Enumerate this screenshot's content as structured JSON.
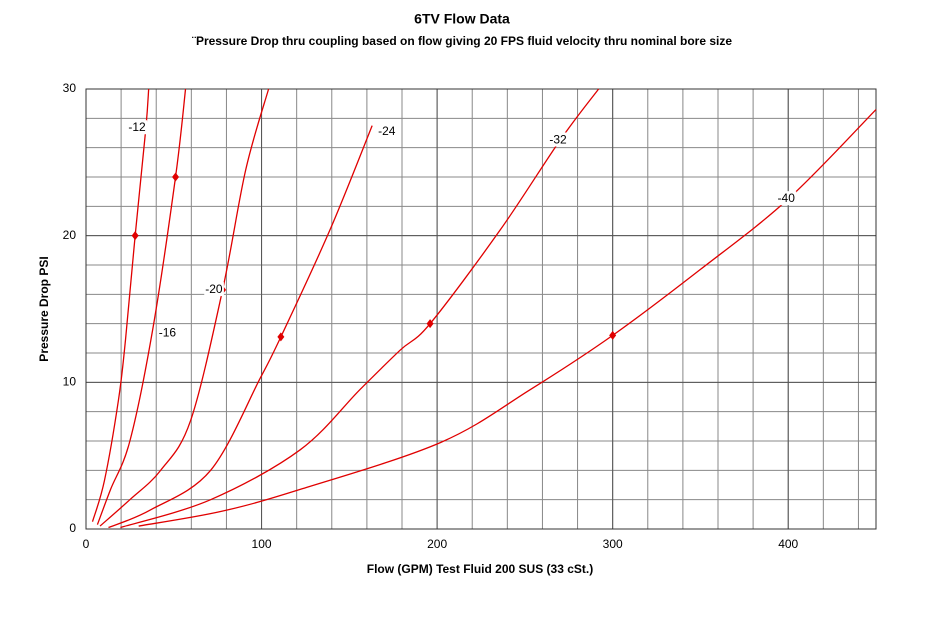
{
  "chart_data": {
    "type": "line",
    "title": "6TV Flow Data",
    "subtitle": "¨Pressure Drop thru coupling based on flow giving 20 FPS fluid velocity thru nominal bore size",
    "x_label": "Flow (GPM) Test Fluid 200 SUS (33 cSt.)",
    "y_label": "Pressure Drop PSI",
    "xlim": [
      0,
      450
    ],
    "ylim": [
      0,
      30
    ],
    "xticks": [
      0,
      100,
      200,
      300,
      400
    ],
    "yticks": [
      0,
      10,
      20,
      30
    ],
    "grid": true,
    "minor_grid": {
      "x": 20,
      "y": 2
    },
    "series": [
      {
        "name": "-12",
        "color": "#e00000",
        "x": [
          3.7,
          10.5,
          18.5,
          22.5,
          28,
          34,
          35.7
        ],
        "values": [
          0.5,
          3.3,
          8.8,
          12.9,
          20,
          27.2,
          30
        ],
        "marker": {
          "x": 28,
          "y": 20
        }
      },
      {
        "name": "-16",
        "color": "#e00000",
        "x": [
          6.5,
          14,
          25,
          38,
          51,
          56.7
        ],
        "values": [
          0.3,
          2.7,
          6,
          13.6,
          24,
          30
        ],
        "marker": {
          "x": 51,
          "y": 24
        }
      },
      {
        "name": "-20",
        "color": "#e00000",
        "x": [
          8,
          25,
          42.5,
          59.6,
          77.8,
          91,
          104
        ],
        "values": [
          0.2,
          2,
          4,
          7.4,
          16.3,
          24.5,
          30
        ],
        "marker": {
          "x": 77.8,
          "y": 16.3
        }
      },
      {
        "name": "-24",
        "color": "#e00000",
        "x": [
          12.8,
          36.7,
          71,
          99.3,
          111,
          139,
          163
        ],
        "values": [
          0.1,
          1.3,
          4,
          10.3,
          13.1,
          20.4,
          27.5
        ],
        "marker": {
          "x": 111,
          "y": 13.1
        }
      },
      {
        "name": "-32",
        "color": "#e00000",
        "x": [
          19.6,
          71,
          122,
          156,
          179,
          196,
          236,
          270,
          292
        ],
        "values": [
          0.1,
          2,
          5.4,
          9.5,
          12.2,
          14,
          20.4,
          26.5,
          30
        ],
        "marker": {
          "x": 196,
          "y": 14
        }
      },
      {
        "name": "-40",
        "color": "#e00000",
        "x": [
          30,
          77,
          122,
          202,
          253,
          300,
          350,
          400,
          450
        ],
        "values": [
          0.2,
          1.2,
          2.7,
          5.9,
          9.5,
          13.2,
          17.7,
          22.5,
          28.6
        ],
        "marker": {
          "x": 300,
          "y": 13.2
        }
      }
    ]
  }
}
